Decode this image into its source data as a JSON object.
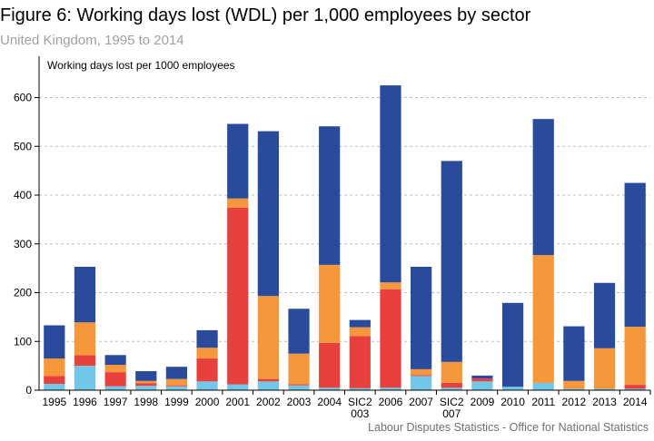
{
  "header": {
    "title": "Figure 6: Working days lost (WDL) per 1,000 employees by sector",
    "subtitle": "United Kingdom, 1995 to 2014"
  },
  "footer": {
    "source": "Labour Disputes Statistics - Office for National Statistics"
  },
  "chart_data": {
    "type": "bar",
    "stacked": true,
    "ylabel": "Working days lost per 1000 employees",
    "xlabel": "",
    "ylim": [
      0,
      650
    ],
    "yticks": [
      0,
      100,
      200,
      300,
      400,
      500,
      600
    ],
    "grid": "horizontal dotted",
    "legend": "none",
    "categories": [
      [
        "1995"
      ],
      [
        "1996"
      ],
      [
        "1997"
      ],
      [
        "1998"
      ],
      [
        "1999"
      ],
      [
        "2000"
      ],
      [
        "2001"
      ],
      [
        "2002"
      ],
      [
        "2003"
      ],
      [
        "2004"
      ],
      [
        "SIC2",
        "003"
      ],
      [
        "2006"
      ],
      [
        "2007"
      ],
      [
        "SIC2",
        "007"
      ],
      [
        "2009"
      ],
      [
        "2010"
      ],
      [
        "2011"
      ],
      [
        "2012"
      ],
      [
        "2013"
      ],
      [
        "2014"
      ]
    ],
    "series": [
      {
        "color": "#72c7e8",
        "values": [
          13,
          50,
          8,
          9,
          8,
          18,
          12,
          18,
          10,
          5,
          4,
          5,
          29,
          5,
          18,
          7,
          15,
          3,
          3,
          3
        ]
      },
      {
        "color": "#e8403e",
        "values": [
          16,
          22,
          29,
          5,
          2,
          47,
          362,
          5,
          2,
          92,
          107,
          202,
          2,
          10,
          6,
          0,
          0,
          0,
          0,
          8
        ]
      },
      {
        "color": "#f5973a",
        "values": [
          36,
          67,
          15,
          5,
          13,
          22,
          19,
          170,
          63,
          160,
          18,
          14,
          12,
          43,
          0,
          0,
          262,
          16,
          83,
          119
        ]
      },
      {
        "color": "#2a4a9b",
        "values": [
          68,
          114,
          20,
          20,
          25,
          36,
          153,
          338,
          92,
          284,
          15,
          404,
          210,
          412,
          6,
          172,
          279,
          112,
          134,
          295
        ]
      }
    ]
  }
}
